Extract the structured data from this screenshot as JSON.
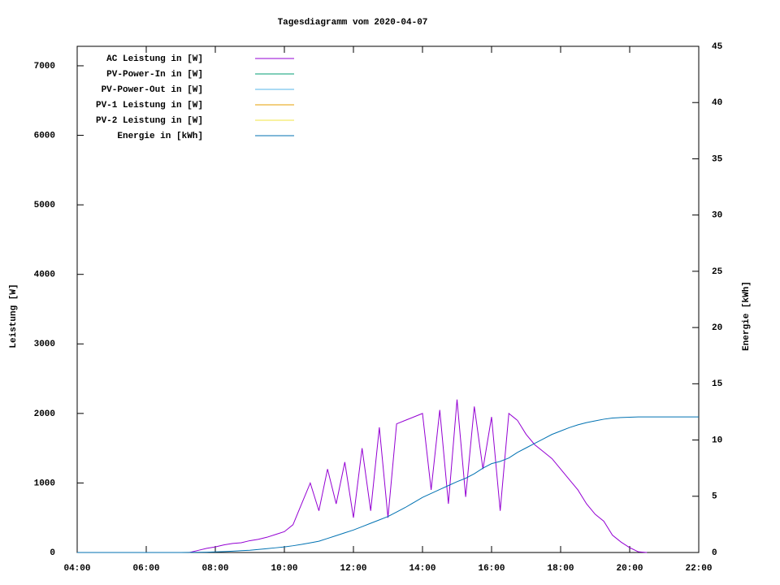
{
  "chart_data": {
    "type": "line",
    "title": "Tagesdiagramm vom 2020-04-07",
    "y_label": "Leistung [W]",
    "y2_label": "Energie [kWh]",
    "x": [
      4,
      4.25,
      4.5,
      4.75,
      5,
      5.25,
      5.5,
      5.75,
      6,
      6.25,
      6.5,
      6.75,
      7,
      7.25,
      7.5,
      7.75,
      8,
      8.25,
      8.5,
      8.75,
      9,
      9.25,
      9.5,
      9.75,
      10,
      10.25,
      10.5,
      10.75,
      11,
      11.25,
      11.5,
      11.75,
      12,
      12.25,
      12.5,
      12.75,
      13,
      13.25,
      13.5,
      13.75,
      14,
      14.25,
      14.5,
      14.75,
      15,
      15.25,
      15.5,
      15.75,
      16,
      16.25,
      16.5,
      16.75,
      17,
      17.25,
      17.5,
      17.75,
      18,
      18.25,
      18.5,
      18.75,
      19,
      19.25,
      19.5,
      19.75,
      20,
      20.25,
      20.5,
      20.75,
      21,
      21.25,
      21.5,
      21.75,
      22
    ],
    "xlim": [
      4,
      22
    ],
    "xticks": [
      {
        "value": 4,
        "label": "04:00"
      },
      {
        "value": 6,
        "label": "06:00"
      },
      {
        "value": 8,
        "label": "08:00"
      },
      {
        "value": 10,
        "label": "10:00"
      },
      {
        "value": 12,
        "label": "12:00"
      },
      {
        "value": 14,
        "label": "14:00"
      },
      {
        "value": 16,
        "label": "16:00"
      },
      {
        "value": 18,
        "label": "18:00"
      },
      {
        "value": 20,
        "label": "20:00"
      },
      {
        "value": 22,
        "label": "22:00"
      }
    ],
    "ylim": [
      0,
      7280
    ],
    "yticks": [
      0,
      1000,
      2000,
      3000,
      4000,
      5000,
      6000,
      7000
    ],
    "y2lim": [
      0,
      45
    ],
    "y2ticks": [
      0,
      5,
      10,
      15,
      20,
      25,
      30,
      35,
      40,
      45
    ],
    "legend": "top-left",
    "series": [
      {
        "name": "AC Leistung in [W]",
        "color": "#9400d3",
        "values": [
          null,
          null,
          null,
          null,
          null,
          null,
          null,
          null,
          null,
          null,
          null,
          null,
          null,
          0,
          30,
          60,
          80,
          110,
          130,
          140,
          170,
          190,
          220,
          260,
          300,
          400,
          700,
          1000,
          600,
          1200,
          700,
          1300,
          500,
          1500,
          600,
          1800,
          500,
          1850,
          1900,
          1950,
          2000,
          900,
          2050,
          700,
          2200,
          800,
          2100,
          1200,
          1950,
          600,
          2000,
          1900,
          1700,
          1550,
          1450,
          1350,
          1200,
          1050,
          900,
          700,
          550,
          450,
          250,
          150,
          70,
          10,
          0,
          null,
          null,
          null,
          null,
          null,
          null
        ]
      },
      {
        "name": "PV-Power-In in [W]",
        "color": "#009e73"
      },
      {
        "name": "PV-Power-Out in [W]",
        "color": "#56b4e9"
      },
      {
        "name": "PV-1 Leistung in [W]",
        "color": "#e69f00"
      },
      {
        "name": "PV-2 Leistung in [W]",
        "color": "#f0e442"
      },
      {
        "name": "Energie in [kWh]",
        "color": "#0072b2",
        "axis": "y2",
        "values": [
          0,
          0,
          0,
          0,
          0,
          0,
          0,
          0,
          0,
          0,
          0,
          0,
          0,
          0.01,
          0.02,
          0.03,
          0.05,
          0.08,
          0.12,
          0.16,
          0.2,
          0.27,
          0.34,
          0.42,
          0.5,
          0.6,
          0.72,
          0.86,
          1.0,
          1.25,
          1.5,
          1.75,
          2.0,
          2.3,
          2.6,
          2.9,
          3.2,
          3.6,
          4.0,
          4.45,
          4.9,
          5.25,
          5.6,
          5.95,
          6.3,
          6.6,
          7.0,
          7.5,
          7.9,
          8.1,
          8.4,
          8.9,
          9.3,
          9.7,
          10.1,
          10.5,
          10.8,
          11.1,
          11.35,
          11.55,
          11.7,
          11.85,
          11.95,
          12.0,
          12.03,
          12.05,
          12.05,
          12.05,
          12.05,
          12.05,
          12.05,
          12.05,
          12.05
        ]
      }
    ]
  }
}
